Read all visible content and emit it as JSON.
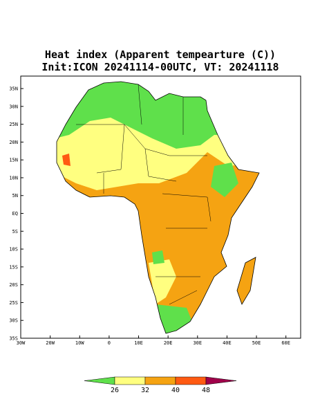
{
  "title": [
    "Heat index (Apparent tempearture (C))",
    "Init:ICON 20241114-00UTC, VT: 20241118"
  ],
  "map": {
    "xlim": [
      -30,
      65
    ],
    "ylim": [
      -35,
      38.5
    ],
    "xticks": [
      {
        "value": -30,
        "label": "30W"
      },
      {
        "value": -20,
        "label": "20W"
      },
      {
        "value": -10,
        "label": "10W"
      },
      0,
      {
        "value": 10,
        "label": "10E"
      },
      {
        "value": 20,
        "label": "20E"
      },
      {
        "value": 30,
        "label": "30E"
      },
      {
        "value": 40,
        "label": "40E"
      },
      {
        "value": 50,
        "label": "50E"
      },
      {
        "value": 60,
        "label": "60E"
      }
    ],
    "yticks": [
      {
        "value": 35,
        "label": "35N"
      },
      {
        "value": 30,
        "label": "30N"
      },
      {
        "value": 25,
        "label": "25N"
      },
      {
        "value": 20,
        "label": "20N"
      },
      {
        "value": 15,
        "label": "15N"
      },
      {
        "value": 10,
        "label": "10N"
      },
      {
        "value": 5,
        "label": "5N"
      },
      {
        "value": 0,
        "label": "EQ"
      },
      {
        "value": -5,
        "label": "5S"
      },
      {
        "value": -10,
        "label": "10S"
      },
      {
        "value": -15,
        "label": "15S"
      },
      {
        "value": -20,
        "label": "20S"
      },
      {
        "value": -25,
        "label": "25S"
      },
      {
        "value": -30,
        "label": "30S"
      },
      {
        "value": -35,
        "label": "35S"
      }
    ]
  },
  "colorbar": {
    "ticks": [
      26,
      32,
      40,
      48
    ],
    "colors": [
      "#5fe04b",
      "#ffff80",
      "#f5a312",
      "#ff5a12",
      "#a0004a"
    ]
  }
}
